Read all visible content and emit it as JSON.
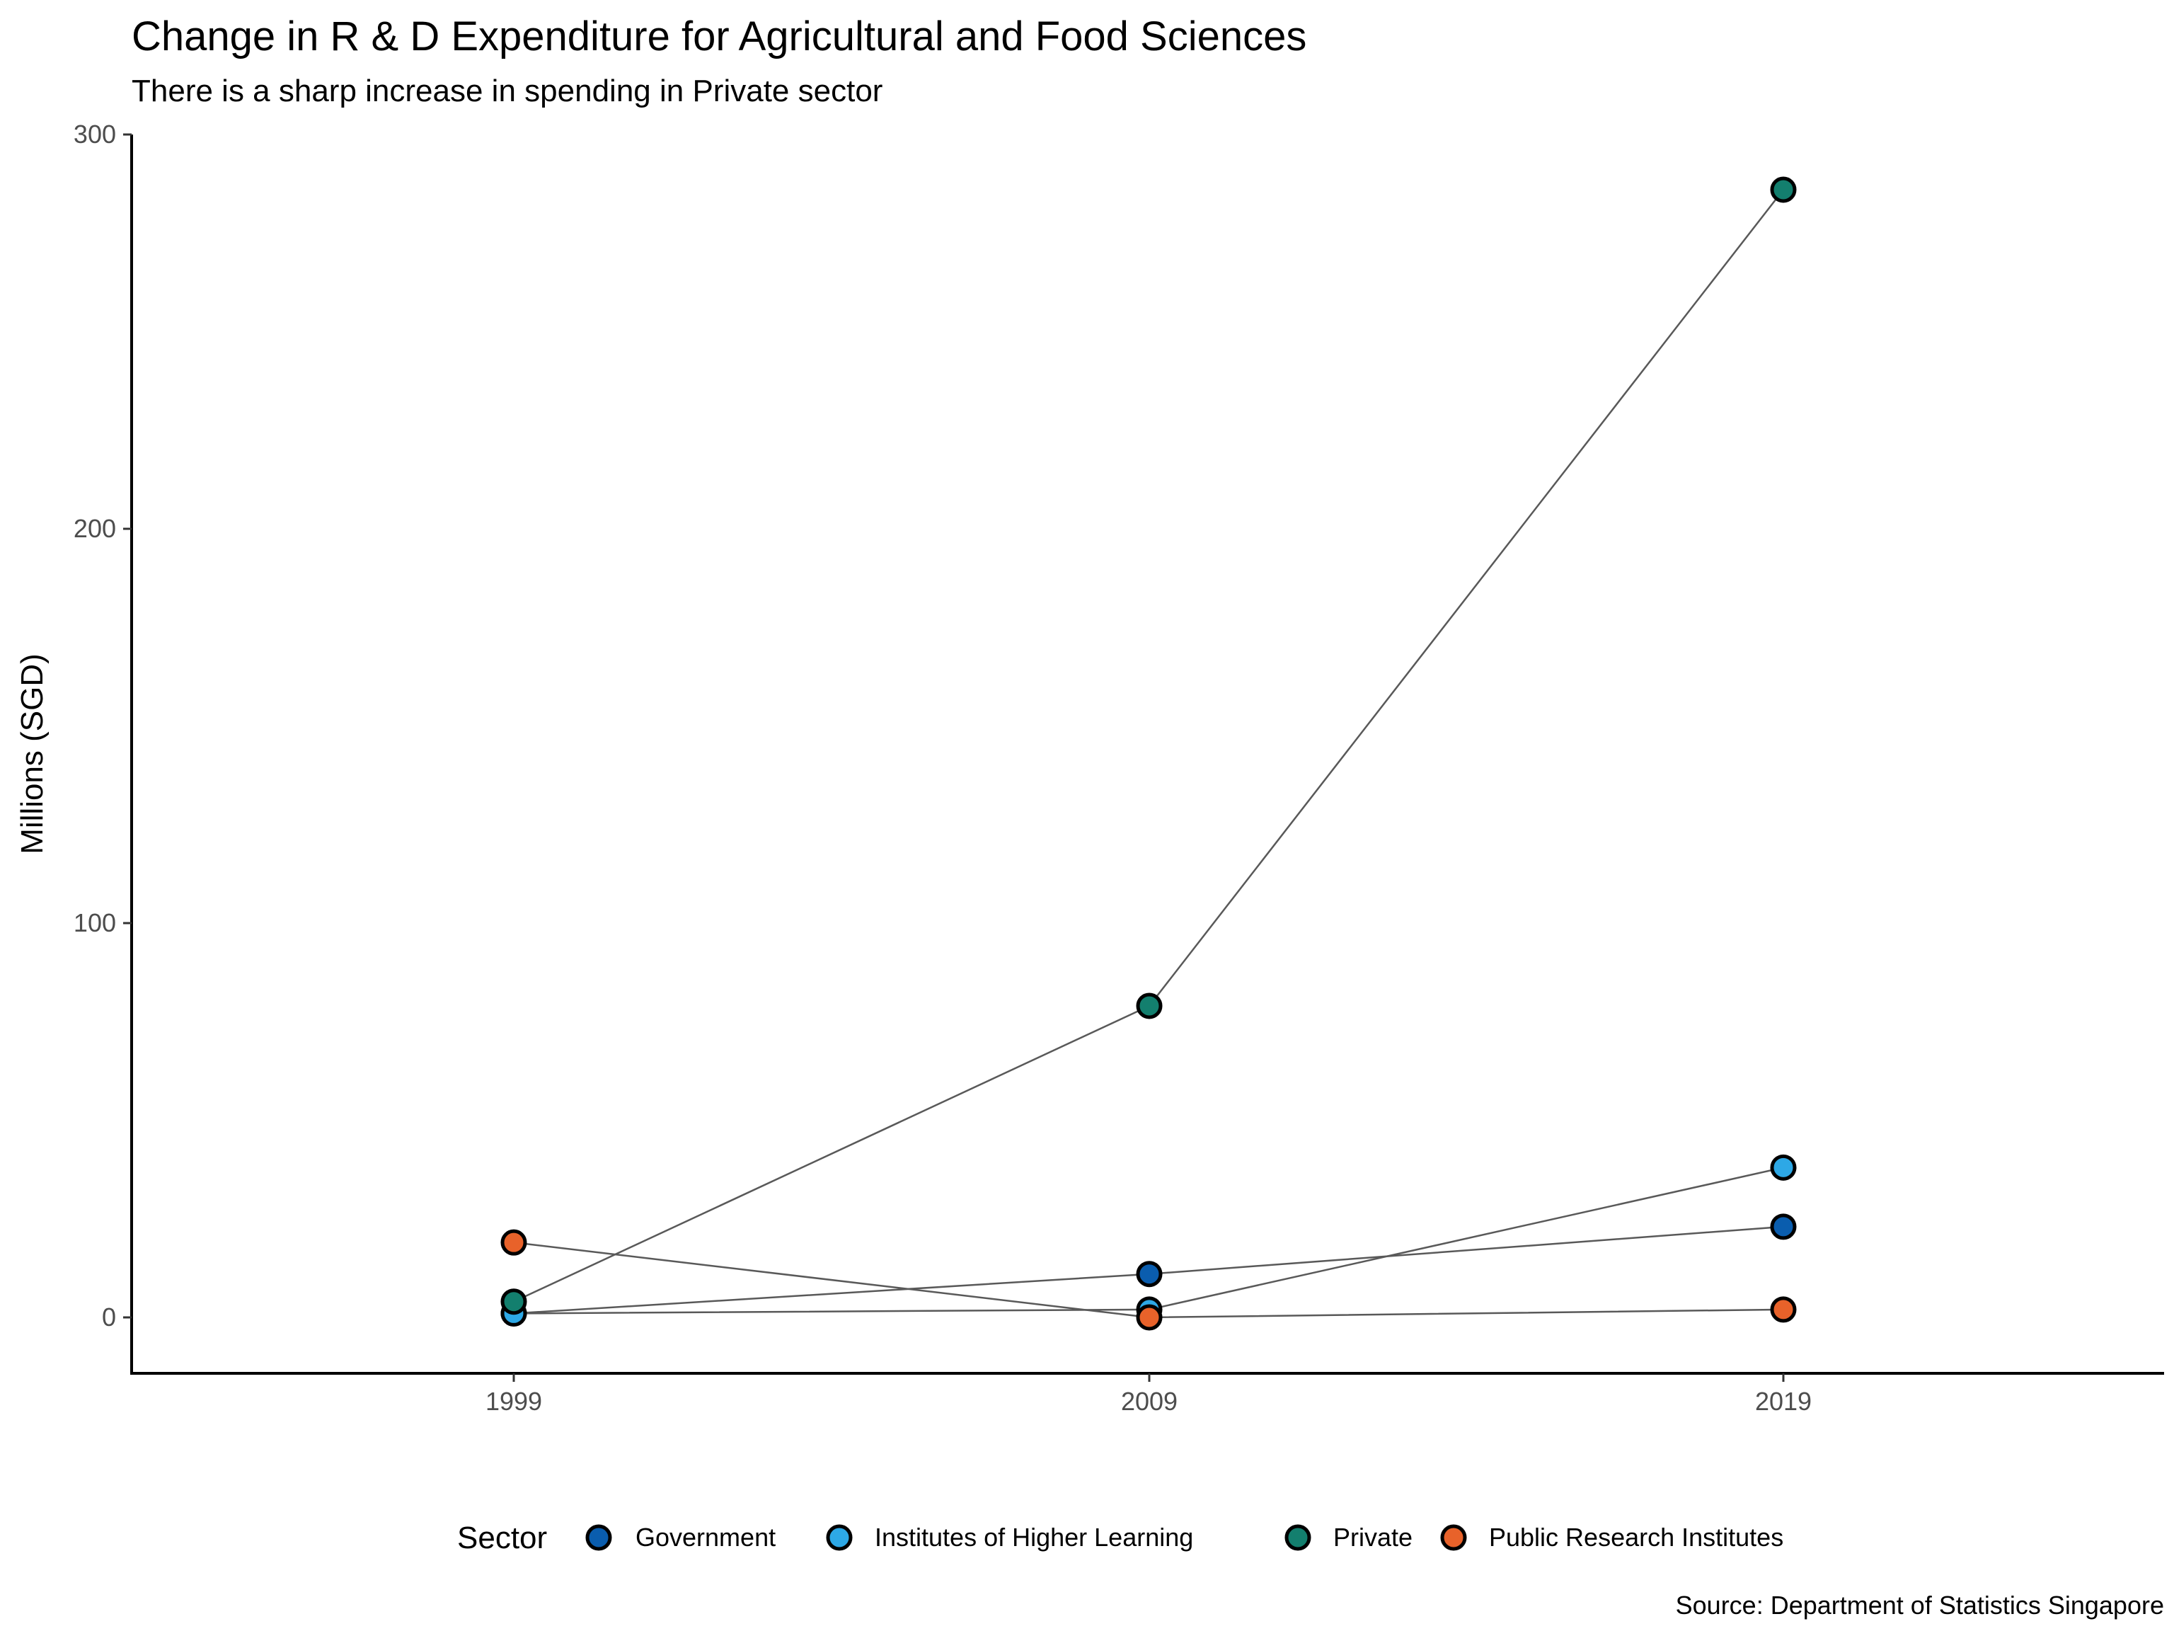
{
  "chart_data": {
    "type": "line",
    "title": "Change in R & D Expenditure for Agricultural and Food Sciences",
    "subtitle": "There is a sharp increase in spending in Private sector",
    "xlabel": "",
    "ylabel": "Millions (SGD)",
    "categories": [
      "1999",
      "2009",
      "2019"
    ],
    "ylim": [
      -14,
      300
    ],
    "yticks": [
      0,
      100,
      200,
      300
    ],
    "grid": false,
    "legend_title": "Sector",
    "legend_position": "bottom",
    "caption": "Source: Department of Statistics Singapore",
    "line_color": "#595959",
    "point_outline_color": "#000000",
    "series": [
      {
        "name": "Government",
        "color": "#0A5DAE",
        "values": [
          1,
          11,
          23
        ]
      },
      {
        "name": "Institutes of Higher Learning",
        "color": "#2DA8E6",
        "values": [
          1,
          2,
          38
        ]
      },
      {
        "name": "Private",
        "color": "#137F6E",
        "values": [
          4,
          79,
          286
        ]
      },
      {
        "name": "Public Research Institutes",
        "color": "#E8622A",
        "values": [
          19,
          0,
          2
        ]
      }
    ]
  }
}
